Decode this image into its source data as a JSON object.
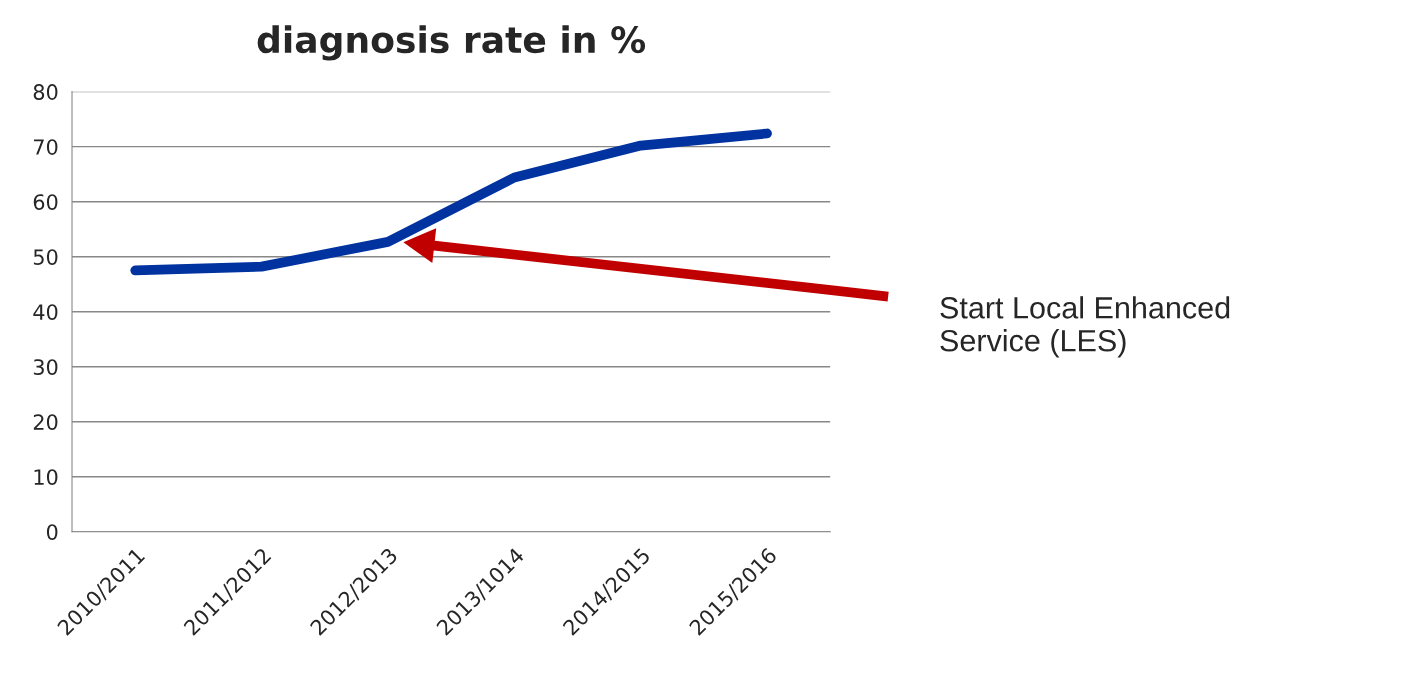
{
  "chart_data": {
    "type": "line",
    "title": "diagnosis rate in %",
    "categories": [
      "2010/2011",
      "2011/2012",
      "2012/2013",
      "2013/1014",
      "2014/2015",
      "2015/2016"
    ],
    "series": [
      {
        "color": "#0033a0",
        "values": [
          47.5,
          48.2,
          52.7,
          64.4,
          70.2,
          72.4
        ]
      }
    ],
    "ylim": [
      0,
      80
    ],
    "yticks": [
      0,
      10,
      20,
      30,
      40,
      50,
      60,
      70,
      80
    ],
    "grid": "y",
    "legend": false,
    "marker": "none",
    "line_style": "solid",
    "annotations": [
      "Start Local Enhanced\nService (LES)"
    ]
  }
}
